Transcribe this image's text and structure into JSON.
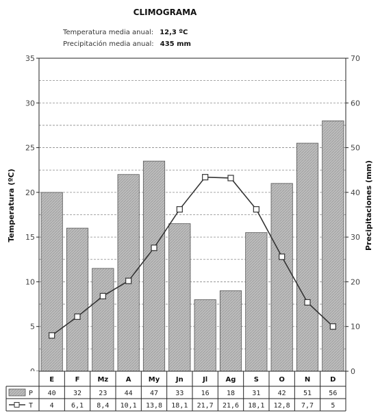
{
  "chart_data": {
    "type": "bar+line",
    "title": "CLIMOGRAMA",
    "subtitle_lines": [
      {
        "label": "Temperatura media anual:",
        "value": "12,3 ºC"
      },
      {
        "label": "Precipitación media anual:",
        "value": "435 mm"
      }
    ],
    "categories": [
      "E",
      "F",
      "Mz",
      "A",
      "My",
      "Jn",
      "Jl",
      "Ag",
      "S",
      "O",
      "N",
      "D"
    ],
    "series": [
      {
        "name": "P",
        "type": "bar",
        "axis": "right",
        "values": [
          40,
          32,
          23,
          44,
          47,
          33,
          16,
          18,
          31,
          42,
          51,
          56
        ],
        "labels": [
          "40",
          "32",
          "23",
          "44",
          "47",
          "33",
          "16",
          "18",
          "31",
          "42",
          "51",
          "56"
        ]
      },
      {
        "name": "T",
        "type": "line",
        "axis": "left",
        "values": [
          4,
          6.1,
          8.4,
          10.1,
          13.8,
          18.1,
          21.7,
          21.6,
          18.1,
          12.8,
          7.7,
          5
        ],
        "labels": [
          "4",
          "6,1",
          "8,4",
          "10,1",
          "13,8",
          "18,1",
          "21,7",
          "21,6",
          "18,1",
          "12,8",
          "7,7",
          "5"
        ]
      }
    ],
    "y_left": {
      "label": "Temperatura (ºC)",
      "ylim": [
        0,
        35
      ],
      "ticks": [
        0,
        5,
        10,
        15,
        20,
        25,
        30,
        35
      ]
    },
    "y_right": {
      "label": "Precipitaciones (mm)",
      "ylim": [
        0,
        70
      ],
      "ticks": [
        0,
        10,
        20,
        30,
        40,
        50,
        60,
        70
      ]
    },
    "grid": "horizontal-dashed",
    "data_table": true,
    "colors": {
      "bar_fill": "#bdbdbd",
      "bar_stroke": "#555555",
      "line": "#333333",
      "marker_fill": "#ffffff",
      "grid": "#888888"
    }
  }
}
